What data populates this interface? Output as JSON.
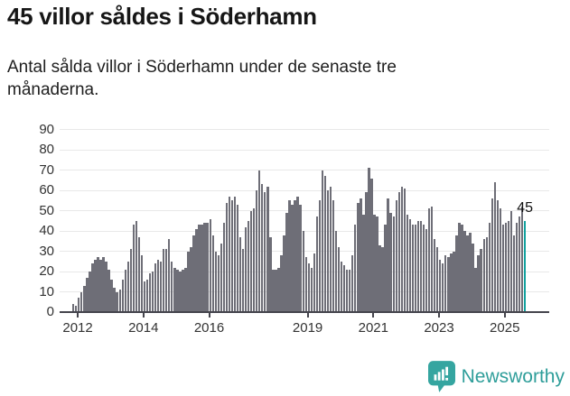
{
  "header": {
    "title": "45 villor såldes i Söderhamn",
    "subtitle_line1": "Antal sålda villor i Söderhamn under de senaste tre",
    "subtitle_line2": "månaderna."
  },
  "chart_data": {
    "type": "bar",
    "title": "45 villor såldes i Söderhamn",
    "subtitle": "Antal sålda villor i Söderhamn under de senaste tre månaderna.",
    "frequency": "monthly",
    "start_month": "2011-11",
    "end_month": "2025-08",
    "values": [
      4,
      3,
      7,
      10,
      13,
      17,
      20,
      24,
      26,
      27,
      26,
      27,
      25,
      21,
      16,
      12,
      10,
      11,
      16,
      21,
      25,
      31,
      43,
      45,
      37,
      28,
      15,
      16,
      19,
      20,
      24,
      26,
      25,
      31,
      31,
      36,
      25,
      22,
      21,
      20,
      21,
      22,
      30,
      32,
      38,
      41,
      43,
      43,
      44,
      44,
      46,
      38,
      30,
      28,
      34,
      44,
      54,
      57,
      55,
      57,
      53,
      37,
      31,
      42,
      45,
      50,
      51,
      60,
      70,
      63,
      59,
      62,
      37,
      21,
      21,
      22,
      28,
      38,
      49,
      55,
      53,
      55,
      57,
      53,
      40,
      27,
      24,
      22,
      29,
      47,
      55,
      70,
      67,
      60,
      62,
      55,
      40,
      32,
      25,
      23,
      21,
      21,
      28,
      43,
      54,
      56,
      48,
      59,
      71,
      66,
      48,
      47,
      33,
      32,
      43,
      56,
      49,
      47,
      55,
      59,
      62,
      61,
      48,
      46,
      43,
      43,
      45,
      45,
      43,
      41,
      51,
      52,
      36,
      32,
      26,
      24,
      28,
      27,
      29,
      30,
      38,
      44,
      43,
      40,
      38,
      39,
      34,
      22,
      28,
      31,
      36,
      37,
      44,
      56,
      64,
      55,
      51,
      43,
      44,
      45,
      50,
      38,
      44,
      47,
      52,
      45
    ],
    "highlight_index": 165,
    "annotation": {
      "label": "45"
    },
    "y_axis": {
      "min": 0,
      "max": 90,
      "tick_step": 10,
      "tick_labels": [
        "0",
        "10",
        "20",
        "30",
        "40",
        "50",
        "60",
        "70",
        "80",
        "90"
      ]
    },
    "x_axis": {
      "tick_labels": [
        "2012",
        "2014",
        "2016",
        "2019",
        "2021",
        "2023",
        "2025"
      ],
      "tick_month_indices": [
        2,
        26,
        50,
        86,
        110,
        134,
        158
      ]
    },
    "grid": true,
    "legend": false,
    "colors": {
      "bar": "#6e6e77",
      "highlight": "#12a19e",
      "axis": "#44444c",
      "grid": "#e8e8e8",
      "tick_label": "#333333",
      "annotation": "#111111"
    }
  },
  "logo": {
    "text": "Newsworthy",
    "icon": "newsworthy-chart-bubble-icon",
    "color": "#2f9e9a",
    "icon_color": "#35a5a0"
  }
}
